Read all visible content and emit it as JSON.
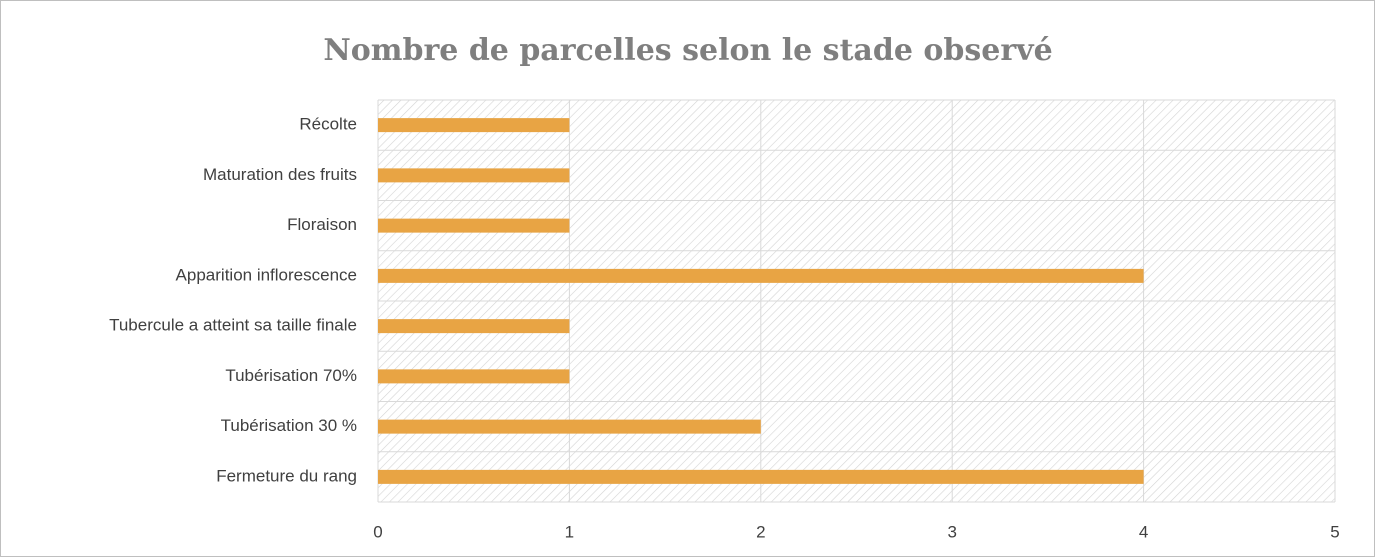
{
  "chart_data": {
    "type": "bar",
    "orientation": "horizontal",
    "title": "Nombre de parcelles selon le stade observé",
    "categories": [
      "Fermeture du rang",
      "Tubérisation 30 %",
      "Tubérisation 70%",
      "Tubercule a atteint sa taille finale",
      "Apparition inflorescence",
      "Floraison",
      "Maturation des fruits",
      "Récolte"
    ],
    "values": [
      4,
      2,
      1,
      1,
      4,
      1,
      1,
      1
    ],
    "color": "#e8a444",
    "xlim": [
      0,
      5
    ],
    "xticks": [
      0,
      1,
      2,
      3,
      4,
      5
    ],
    "grid": true
  }
}
